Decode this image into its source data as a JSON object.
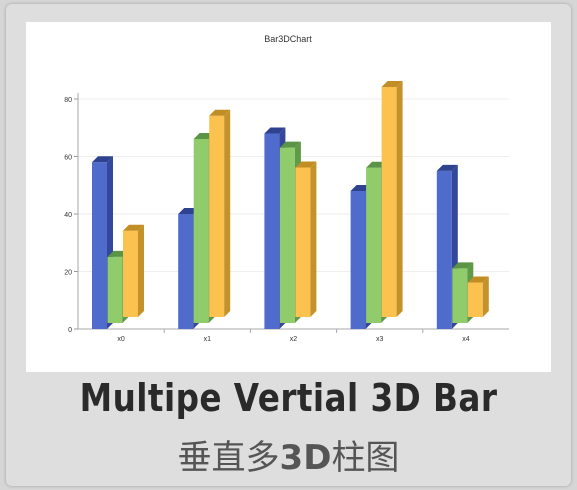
{
  "caption": {
    "title_en": "Multipe Vertial 3D Bar",
    "title_zh_1": "垂直多",
    "title_zh_2": "3D",
    "title_zh_3": "柱图"
  },
  "colors": {
    "series": [
      "#4f6ccc",
      "#90cc6c",
      "#fcc24f"
    ],
    "series_dark": [
      "#33489a",
      "#5e9a48",
      "#c4922a"
    ],
    "series_top": [
      "#2f4290",
      "#5a9444",
      "#c18e25"
    ]
  },
  "chart_data": {
    "type": "bar",
    "title": "Bar3DChart",
    "xlabel": "",
    "ylabel": "",
    "categories": [
      "x0",
      "x1",
      "x2",
      "x3",
      "x4"
    ],
    "series": [
      {
        "values": [
          58,
          40,
          68,
          48,
          55
        ]
      },
      {
        "values": [
          23,
          64,
          61,
          54,
          19
        ]
      },
      {
        "values": [
          30,
          70,
          52,
          80,
          12
        ]
      }
    ],
    "ylim": [
      0,
      80
    ],
    "yticks": [
      0,
      20,
      40,
      60,
      80
    ],
    "grid": true,
    "legend": "none",
    "bar_style": "3d"
  }
}
